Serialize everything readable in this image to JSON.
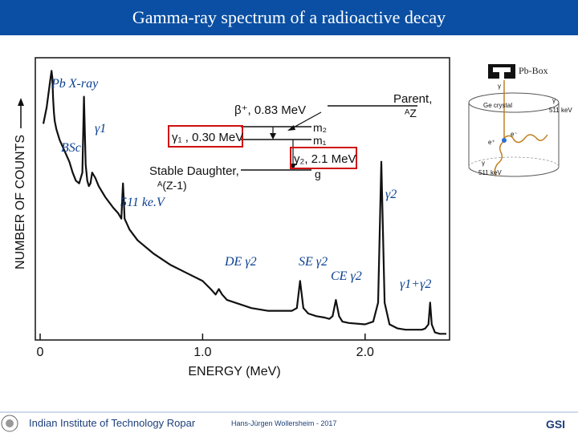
{
  "header": {
    "title": "Gamma-ray spectrum of a radioactive decay"
  },
  "legend_box": {
    "label": "Pb-Box"
  },
  "annotations": {
    "pb_xray": "Pb X-ray",
    "gamma1": "γ1",
    "bsc": "BSc",
    "annihilation": "511 ke.V",
    "gamma2": "γ2",
    "de": "DE γ2",
    "se": "SE γ2",
    "ce": "CE γ2",
    "sum": "γ1+γ2"
  },
  "decay_scheme": {
    "beta": "β⁺, 0.83 MeV",
    "parent": "Parent,",
    "parent_z": "ᴬZ",
    "m2": "m₂",
    "m1": "m₁",
    "gamma1_energy": "γ₁ , 0.30 MeV",
    "gamma2_energy": "γ₂, 2.1 MeV",
    "g": "g",
    "daughter": "Stable Daughter,",
    "daughter_z": "ᴬ(Z-1)"
  },
  "detector": {
    "crystal": "Ge crystal",
    "gamma_top": "γ",
    "gamma_right": "γ",
    "kev_right": "511 keV",
    "gamma_bottom": "γ",
    "kev_bottom": "511 keV",
    "eplus": "e⁺",
    "eminus": "e⁻"
  },
  "footer": {
    "institute": "Indian Institute of Technology Ropar",
    "author": "Hans-Jürgen Wollersheim - 2017",
    "logo": "GSI"
  },
  "colors": {
    "header_bg": "#0a4fa3",
    "label": "#0a3f8f",
    "highlight": "#d01010",
    "spectrum": "#111111"
  },
  "chart_data": {
    "type": "line",
    "title": "",
    "xlabel": "ENERGY (MeV)",
    "ylabel": "NUMBER OF COUNTS",
    "xlim": [
      0,
      2.5
    ],
    "ylim": [
      0,
      1
    ],
    "x_ticks": [
      {
        "value": 0,
        "label": "0"
      },
      {
        "value": 1.0,
        "label": "1.0"
      },
      {
        "value": 2.0,
        "label": "2.0"
      }
    ],
    "log_scale": false,
    "grid": false,
    "series": [
      {
        "x": [
          0.02,
          0.04,
          0.06,
          0.07,
          0.075,
          0.08,
          0.085,
          0.09,
          0.1,
          0.12,
          0.15,
          0.18,
          0.2,
          0.22,
          0.24,
          0.26,
          0.27,
          0.28,
          0.29,
          0.3,
          0.31,
          0.32,
          0.34,
          0.36,
          0.4,
          0.45,
          0.48,
          0.5,
          0.505,
          0.51,
          0.515,
          0.52,
          0.55,
          0.6,
          0.7,
          0.8,
          0.9,
          1.0,
          1.05,
          1.08,
          1.1,
          1.12,
          1.15,
          1.2,
          1.3,
          1.4,
          1.5,
          1.55,
          1.58,
          1.6,
          1.62,
          1.65,
          1.7,
          1.75,
          1.78,
          1.8,
          1.82,
          1.84,
          1.86,
          1.9,
          2.0,
          2.05,
          2.08,
          2.1,
          2.12,
          2.15,
          2.2,
          2.25,
          2.3,
          2.35,
          2.37,
          2.39,
          2.4,
          2.41,
          2.43,
          2.46,
          2.5
        ],
        "y": [
          0.78,
          0.84,
          0.93,
          0.975,
          0.95,
          0.87,
          0.82,
          0.79,
          0.76,
          0.72,
          0.68,
          0.64,
          0.6,
          0.57,
          0.56,
          0.6,
          0.88,
          0.63,
          0.57,
          0.55,
          0.56,
          0.6,
          0.58,
          0.55,
          0.51,
          0.47,
          0.45,
          0.43,
          0.5,
          0.56,
          0.5,
          0.43,
          0.39,
          0.35,
          0.3,
          0.26,
          0.23,
          0.2,
          0.17,
          0.15,
          0.17,
          0.15,
          0.13,
          0.12,
          0.1,
          0.09,
          0.09,
          0.09,
          0.1,
          0.2,
          0.1,
          0.08,
          0.07,
          0.065,
          0.06,
          0.07,
          0.13,
          0.07,
          0.05,
          0.045,
          0.04,
          0.05,
          0.12,
          0.64,
          0.12,
          0.04,
          0.025,
          0.02,
          0.02,
          0.02,
          0.025,
          0.04,
          0.12,
          0.04,
          0.01,
          0.005,
          0.005
        ]
      }
    ]
  }
}
